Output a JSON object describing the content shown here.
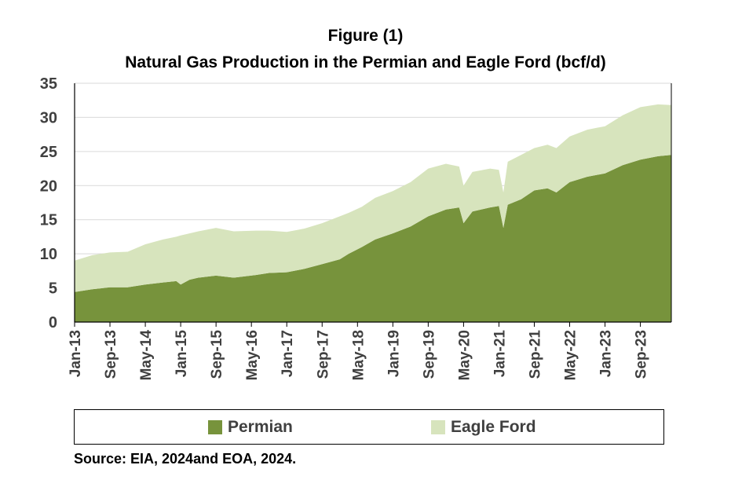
{
  "title_line1": "Figure (1)",
  "title_line2": "Natural Gas Production in the Permian and Eagle Ford (bcf/d)",
  "source": "Source: EIA, 2024and EOA, 2024.",
  "colors": {
    "permian": "#77933c",
    "eagle_ford": "#d7e4bd",
    "axis": "#000000",
    "tick_text": "#404040"
  },
  "chart_data": {
    "type": "area",
    "stacked": true,
    "title": "Natural Gas Production in the Permian and Eagle Ford (bcf/d)",
    "xlabel": "",
    "ylabel": "",
    "ylim": [
      0,
      35
    ],
    "yticks": [
      0,
      5,
      10,
      15,
      20,
      25,
      30,
      35
    ],
    "xrange": [
      "Jan-13",
      "Apr-24"
    ],
    "xtick_labels": [
      "Jan-13",
      "Sep-13",
      "May-14",
      "Jan-15",
      "Sep-15",
      "May-16",
      "Jan-17",
      "Sep-17",
      "May-18",
      "Jan-19",
      "Sep-19",
      "May-20",
      "Jan-21",
      "Sep-21",
      "May-22",
      "Jan-23",
      "Sep-23"
    ],
    "grid": "horizontal",
    "legend_position": "bottom",
    "series": [
      {
        "name": "Permian",
        "color": "#77933c",
        "points": [
          [
            "Jan-13",
            4.4
          ],
          [
            "May-13",
            4.8
          ],
          [
            "Sep-13",
            5.1
          ],
          [
            "Jan-14",
            5.1
          ],
          [
            "May-14",
            5.5
          ],
          [
            "Sep-14",
            5.8
          ],
          [
            "Dec-14",
            6.0
          ],
          [
            "Jan-15",
            5.5
          ],
          [
            "Mar-15",
            6.2
          ],
          [
            "May-15",
            6.5
          ],
          [
            "Sep-15",
            6.8
          ],
          [
            "Jan-16",
            6.5
          ],
          [
            "Jun-16",
            6.9
          ],
          [
            "Sep-16",
            7.2
          ],
          [
            "Jan-17",
            7.3
          ],
          [
            "May-17",
            7.8
          ],
          [
            "Sep-17",
            8.5
          ],
          [
            "Jan-18",
            9.2
          ],
          [
            "Mar-18",
            10.0
          ],
          [
            "Jun-18",
            11.0
          ],
          [
            "Sep-18",
            12.1
          ],
          [
            "Jan-19",
            13.0
          ],
          [
            "May-19",
            14.0
          ],
          [
            "Sep-19",
            15.5
          ],
          [
            "Jan-20",
            16.5
          ],
          [
            "Apr-20",
            16.8
          ],
          [
            "May-20",
            14.5
          ],
          [
            "Jul-20",
            16.2
          ],
          [
            "Nov-20",
            16.8
          ],
          [
            "Jan-21",
            17.0
          ],
          [
            "Feb-21",
            13.8
          ],
          [
            "Mar-21",
            17.2
          ],
          [
            "Jun-21",
            18.0
          ],
          [
            "Sep-21",
            19.3
          ],
          [
            "Dec-21",
            19.6
          ],
          [
            "Feb-22",
            19.0
          ],
          [
            "May-22",
            20.5
          ],
          [
            "Sep-22",
            21.3
          ],
          [
            "Jan-23",
            21.8
          ],
          [
            "May-23",
            23.0
          ],
          [
            "Sep-23",
            23.8
          ],
          [
            "Jan-24",
            24.3
          ],
          [
            "Apr-24",
            24.5
          ]
        ]
      },
      {
        "name": "Eagle Ford",
        "color": "#d7e4bd",
        "points": [
          [
            "Jan-13",
            4.6
          ],
          [
            "May-13",
            5.0
          ],
          [
            "Sep-13",
            5.1
          ],
          [
            "Jan-14",
            5.2
          ],
          [
            "May-14",
            5.9
          ],
          [
            "Sep-14",
            6.3
          ],
          [
            "Dec-14",
            6.5
          ],
          [
            "Jan-15",
            7.2
          ],
          [
            "Mar-15",
            6.8
          ],
          [
            "May-15",
            6.8
          ],
          [
            "Sep-15",
            7.0
          ],
          [
            "Jan-16",
            6.8
          ],
          [
            "Jun-16",
            6.5
          ],
          [
            "Sep-16",
            6.2
          ],
          [
            "Jan-17",
            5.9
          ],
          [
            "May-17",
            5.9
          ],
          [
            "Sep-17",
            6.0
          ],
          [
            "Jan-18",
            6.3
          ],
          [
            "Mar-18",
            6.0
          ],
          [
            "Jun-18",
            5.9
          ],
          [
            "Sep-18",
            6.1
          ],
          [
            "Jan-19",
            6.2
          ],
          [
            "May-19",
            6.5
          ],
          [
            "Sep-19",
            7.0
          ],
          [
            "Jan-20",
            6.7
          ],
          [
            "Apr-20",
            6.0
          ],
          [
            "May-20",
            5.5
          ],
          [
            "Jul-20",
            5.8
          ],
          [
            "Nov-20",
            5.7
          ],
          [
            "Jan-21",
            5.3
          ],
          [
            "Feb-21",
            5.2
          ],
          [
            "Mar-21",
            6.3
          ],
          [
            "Jun-21",
            6.5
          ],
          [
            "Sep-21",
            6.2
          ],
          [
            "Dec-21",
            6.4
          ],
          [
            "Feb-22",
            6.5
          ],
          [
            "May-22",
            6.7
          ],
          [
            "Sep-22",
            6.9
          ],
          [
            "Jan-23",
            6.9
          ],
          [
            "May-23",
            7.3
          ],
          [
            "Sep-23",
            7.7
          ],
          [
            "Jan-24",
            7.6
          ],
          [
            "Apr-24",
            7.3
          ]
        ]
      }
    ]
  }
}
